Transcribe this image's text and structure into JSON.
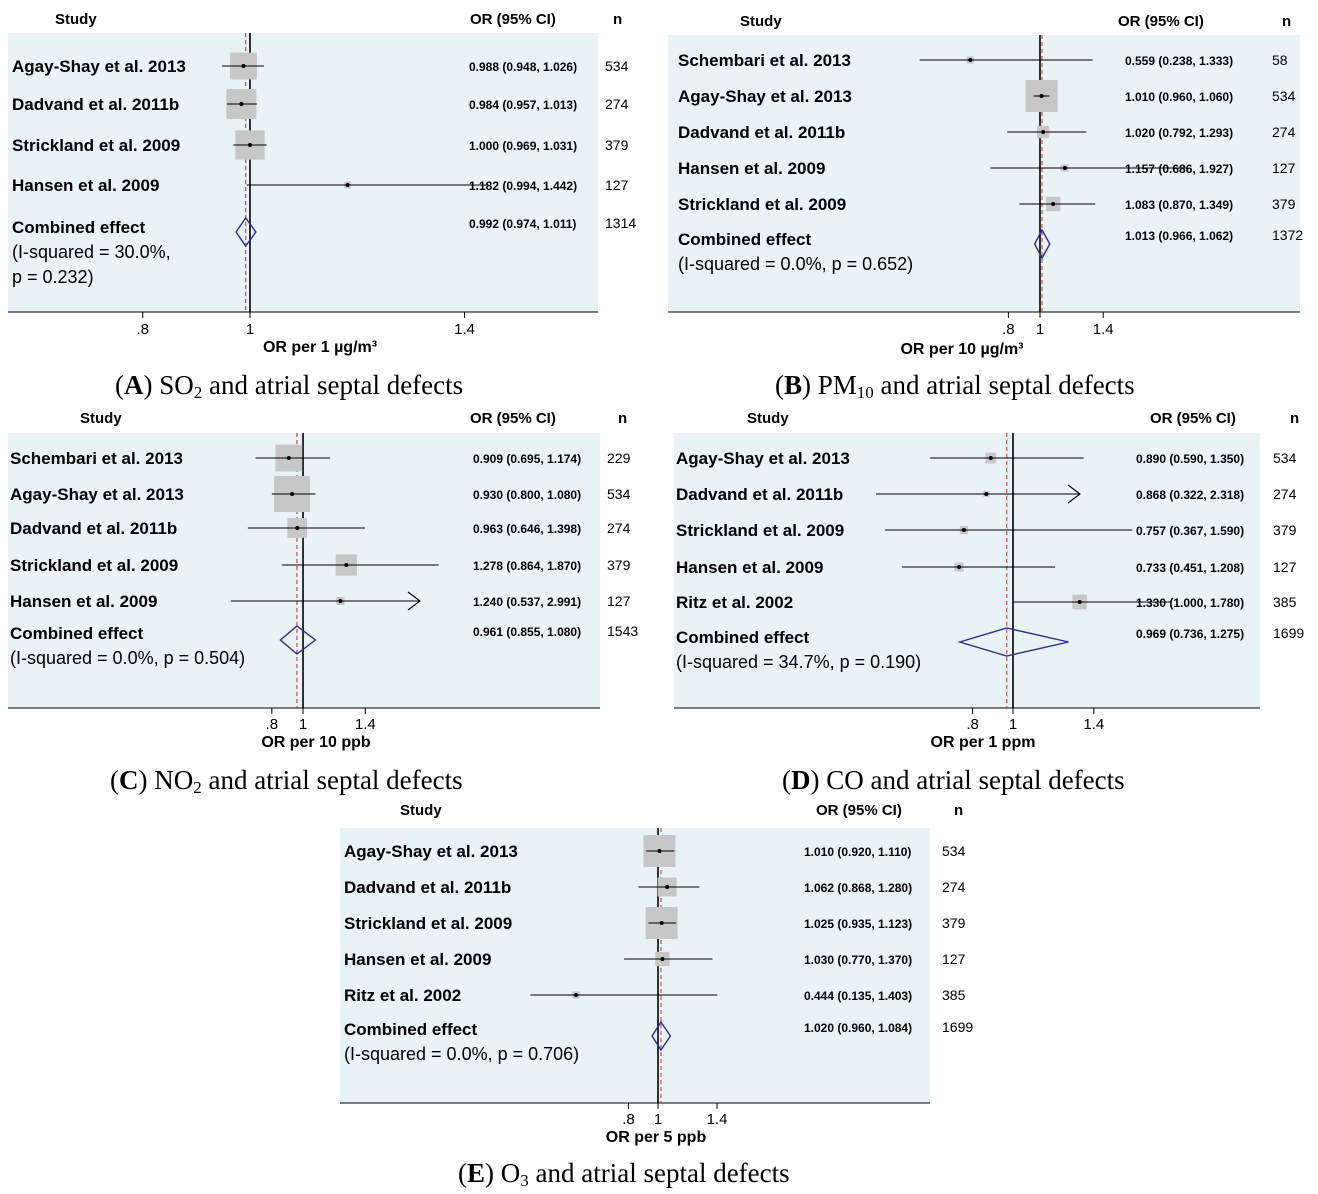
{
  "chart_data": [
    {
      "type": "forest",
      "header": {
        "study": "Study",
        "or": "OR (95% CI)",
        "n": "n"
      },
      "xlabel": "OR per 1 µg/m³",
      "x_ticks": [
        ".8",
        "1",
        "1.4"
      ],
      "x_tick_values": [
        0.8,
        1,
        1.4
      ],
      "null_line": 1,
      "caption": {
        "letter": "A",
        "pollutant": "SO",
        "sub": "2",
        "text": "and atrial septal defects"
      },
      "studies": [
        {
          "name": "Agay-Shay et al. 2013",
          "or": 0.988,
          "lo": 0.948,
          "hi": 1.026,
          "label": "0.988 (0.948, 1.026)",
          "n": "534",
          "weight": 0.8
        },
        {
          "name": "Dadvand et al. 2011b",
          "or": 0.984,
          "lo": 0.957,
          "hi": 1.013,
          "label": "0.984 (0.957, 1.013)",
          "n": "274",
          "weight": 1.0
        },
        {
          "name": "Strickland et al. 2009",
          "or": 1.0,
          "lo": 0.969,
          "hi": 1.031,
          "label": "1.000 (0.969, 1.031)",
          "n": "379",
          "weight": 0.95
        },
        {
          "name": "Hansen et al. 2009",
          "or": 1.182,
          "lo": 0.994,
          "hi": 1.442,
          "label": "1.182 (0.994, 1.442)",
          "n": "127",
          "weight": 0.05
        }
      ],
      "combined": {
        "label1": "Combined effect",
        "label2": "(I-squared = 30.0%,",
        "label3": "p = 0.232)",
        "or": 0.992,
        "lo": 0.974,
        "hi": 1.011,
        "ci_label": "0.992 (0.974, 1.011)",
        "n": "1314"
      }
    },
    {
      "type": "forest",
      "header": {
        "study": "Study",
        "or": "OR (95% CI)",
        "n": "n"
      },
      "xlabel": "OR per 10 µg/m³",
      "x_ticks": [
        ".8",
        "1",
        "1.4"
      ],
      "x_tick_values": [
        0.8,
        1,
        1.4
      ],
      "null_line": 1,
      "caption": {
        "letter": "B",
        "pollutant": "PM",
        "sub": "10",
        "text": "and atrial septal defects"
      },
      "studies": [
        {
          "name": "Schembari et al. 2013",
          "or": 0.559,
          "lo": 0.238,
          "hi": 1.333,
          "label": "0.559 (0.238, 1.333)",
          "n": "58",
          "weight": 0.05
        },
        {
          "name": "Agay-Shay et al. 2013",
          "or": 1.01,
          "lo": 0.96,
          "hi": 1.06,
          "label": "1.010 (0.960, 1.060)",
          "n": "534",
          "weight": 1.0
        },
        {
          "name": "Dadvand et al. 2011b",
          "or": 1.02,
          "lo": 0.792,
          "hi": 1.293,
          "label": "1.020 (0.792, 1.293)",
          "n": "274",
          "weight": 0.15
        },
        {
          "name": "Hansen et al. 2009",
          "or": 1.157,
          "lo": 0.686,
          "hi": 1.927,
          "label": "1.157 (0.686, 1.927)",
          "n": "127",
          "weight": 0.05
        },
        {
          "name": "Strickland et al. 2009",
          "or": 1.083,
          "lo": 0.87,
          "hi": 1.349,
          "label": "1.083 (0.870, 1.349)",
          "n": "379",
          "weight": 0.2
        }
      ],
      "combined": {
        "label1": "Combined effect",
        "label2": "(I-squared = 0.0%, p = 0.652)",
        "label3": "",
        "or": 1.013,
        "lo": 0.966,
        "hi": 1.062,
        "ci_label": "1.013 (0.966, 1.062)",
        "n": "1372"
      }
    },
    {
      "type": "forest",
      "header": {
        "study": "Study",
        "or": "OR (95% CI)",
        "n": "n"
      },
      "xlabel": "OR per 10 ppb",
      "x_ticks": [
        ".8",
        "1",
        "1.4"
      ],
      "x_tick_values": [
        0.8,
        1,
        1.4
      ],
      "null_line": 1,
      "caption": {
        "letter": "C",
        "pollutant": "NO",
        "sub": "2",
        "text": "and atrial septal defects"
      },
      "studies": [
        {
          "name": "Schembari et al. 2013",
          "or": 0.909,
          "lo": 0.695,
          "hi": 1.174,
          "label": "0.909 (0.695, 1.174)",
          "n": "229",
          "weight": 0.55
        },
        {
          "name": "Agay-Shay et al. 2013",
          "or": 0.93,
          "lo": 0.8,
          "hi": 1.08,
          "label": "0.930 (0.800, 1.080)",
          "n": "534",
          "weight": 1.0
        },
        {
          "name": "Dadvand et al. 2011b",
          "or": 0.963,
          "lo": 0.646,
          "hi": 1.398,
          "label": "0.963 (0.646, 1.398)",
          "n": "274",
          "weight": 0.3
        },
        {
          "name": "Strickland et al. 2009",
          "or": 1.278,
          "lo": 0.864,
          "hi": 1.87,
          "label": "1.278 (0.864, 1.870)",
          "n": "379",
          "weight": 0.35
        },
        {
          "name": "Hansen et al. 2009",
          "or": 1.24,
          "lo": 0.537,
          "hi": 2.991,
          "label": "1.240 (0.537, 2.991)",
          "n": "127",
          "weight": 0.05
        }
      ],
      "combined": {
        "label1": "Combined effect",
        "label2": "(I-squared = 0.0%, p = 0.504)",
        "label3": "",
        "or": 0.961,
        "lo": 0.855,
        "hi": 1.08,
        "ci_label": "0.961 (0.855, 1.080)",
        "n": "1543"
      }
    },
    {
      "type": "forest",
      "header": {
        "study": "Study",
        "or": "OR (95% CI)",
        "n": "n"
      },
      "xlabel": "OR per 1 ppm",
      "x_ticks": [
        ".8",
        "1",
        "1.4"
      ],
      "x_tick_values": [
        0.8,
        1,
        1.4
      ],
      "null_line": 1,
      "caption": {
        "letter": "D",
        "pollutant": "CO",
        "sub": "",
        "text": "and atrial septal defects"
      },
      "studies": [
        {
          "name": "Agay-Shay et al. 2013",
          "or": 0.89,
          "lo": 0.59,
          "hi": 1.35,
          "label": "0.890 (0.590, 1.350)",
          "n": "534",
          "weight": 0.35
        },
        {
          "name": "Dadvand et al. 2011b",
          "or": 0.868,
          "lo": 0.322,
          "hi": 2.318,
          "label": "0.868 (0.322, 2.318)",
          "n": "274",
          "weight": 0.05
        },
        {
          "name": "Strickland et al. 2009",
          "or": 0.757,
          "lo": 0.367,
          "hi": 1.59,
          "label": "0.757 (0.367, 1.590)",
          "n": "379",
          "weight": 0.2
        },
        {
          "name": "Hansen et al. 2009",
          "or": 0.733,
          "lo": 0.451,
          "hi": 1.208,
          "label": "0.733 (0.451, 1.208)",
          "n": "127",
          "weight": 0.25
        },
        {
          "name": "Ritz et al. 2002",
          "or": 1.33,
          "lo": 1.0,
          "hi": 1.78,
          "label": "1.330 (1.000, 1.780)",
          "n": "385",
          "weight": 0.65
        }
      ],
      "combined": {
        "label1": "Combined effect",
        "label2": "(I-squared = 34.7%, p = 0.190)",
        "label3": "",
        "or": 0.969,
        "lo": 0.736,
        "hi": 1.275,
        "ci_label": "0.969 (0.736, 1.275)",
        "n": "1699"
      }
    },
    {
      "type": "forest",
      "header": {
        "study": "Study",
        "or": "OR (95% CI)",
        "n": "n"
      },
      "xlabel": "OR per 5 ppb",
      "x_ticks": [
        ".8",
        "1",
        "1.4"
      ],
      "x_tick_values": [
        0.8,
        1,
        1.4
      ],
      "null_line": 1,
      "caption": {
        "letter": "E",
        "pollutant": "O",
        "sub": "3",
        "text": "and atrial septal defects"
      },
      "studies": [
        {
          "name": "Agay-Shay et al. 2013",
          "or": 1.01,
          "lo": 0.92,
          "hi": 1.11,
          "label": "1.010 (0.920, 1.110)",
          "n": "534",
          "weight": 1.0
        },
        {
          "name": "Dadvand et al. 2011b",
          "or": 1.062,
          "lo": 0.868,
          "hi": 1.28,
          "label": "1.062 (0.868, 1.280)",
          "n": "274",
          "weight": 0.35
        },
        {
          "name": "Strickland et al. 2009",
          "or": 1.025,
          "lo": 0.935,
          "hi": 1.123,
          "label": "1.025 (0.935, 1.123)",
          "n": "379",
          "weight": 1.0
        },
        {
          "name": "Hansen et al. 2009",
          "or": 1.03,
          "lo": 0.77,
          "hi": 1.37,
          "label": "1.030 (0.770, 1.370)",
          "n": "127",
          "weight": 0.2
        },
        {
          "name": "Ritz et al. 2002",
          "or": 0.444,
          "lo": 0.135,
          "hi": 1.403,
          "label": "0.444 (0.135, 1.403)",
          "n": "385",
          "weight": 0.05
        }
      ],
      "combined": {
        "label1": "Combined effect",
        "label2": "(I-squared = 0.0%, p = 0.706)",
        "label3": "",
        "or": 1.02,
        "lo": 0.96,
        "hi": 1.084,
        "ci_label": "1.020 (0.960, 1.084)",
        "n": "1699"
      }
    }
  ],
  "colors": {
    "plot_bg": "#e9f2f4",
    "weight_box": "#c7c7c7",
    "diamond": "#2b2b9a",
    "null_line": "#000000",
    "pooled_line": "#c0504d"
  }
}
